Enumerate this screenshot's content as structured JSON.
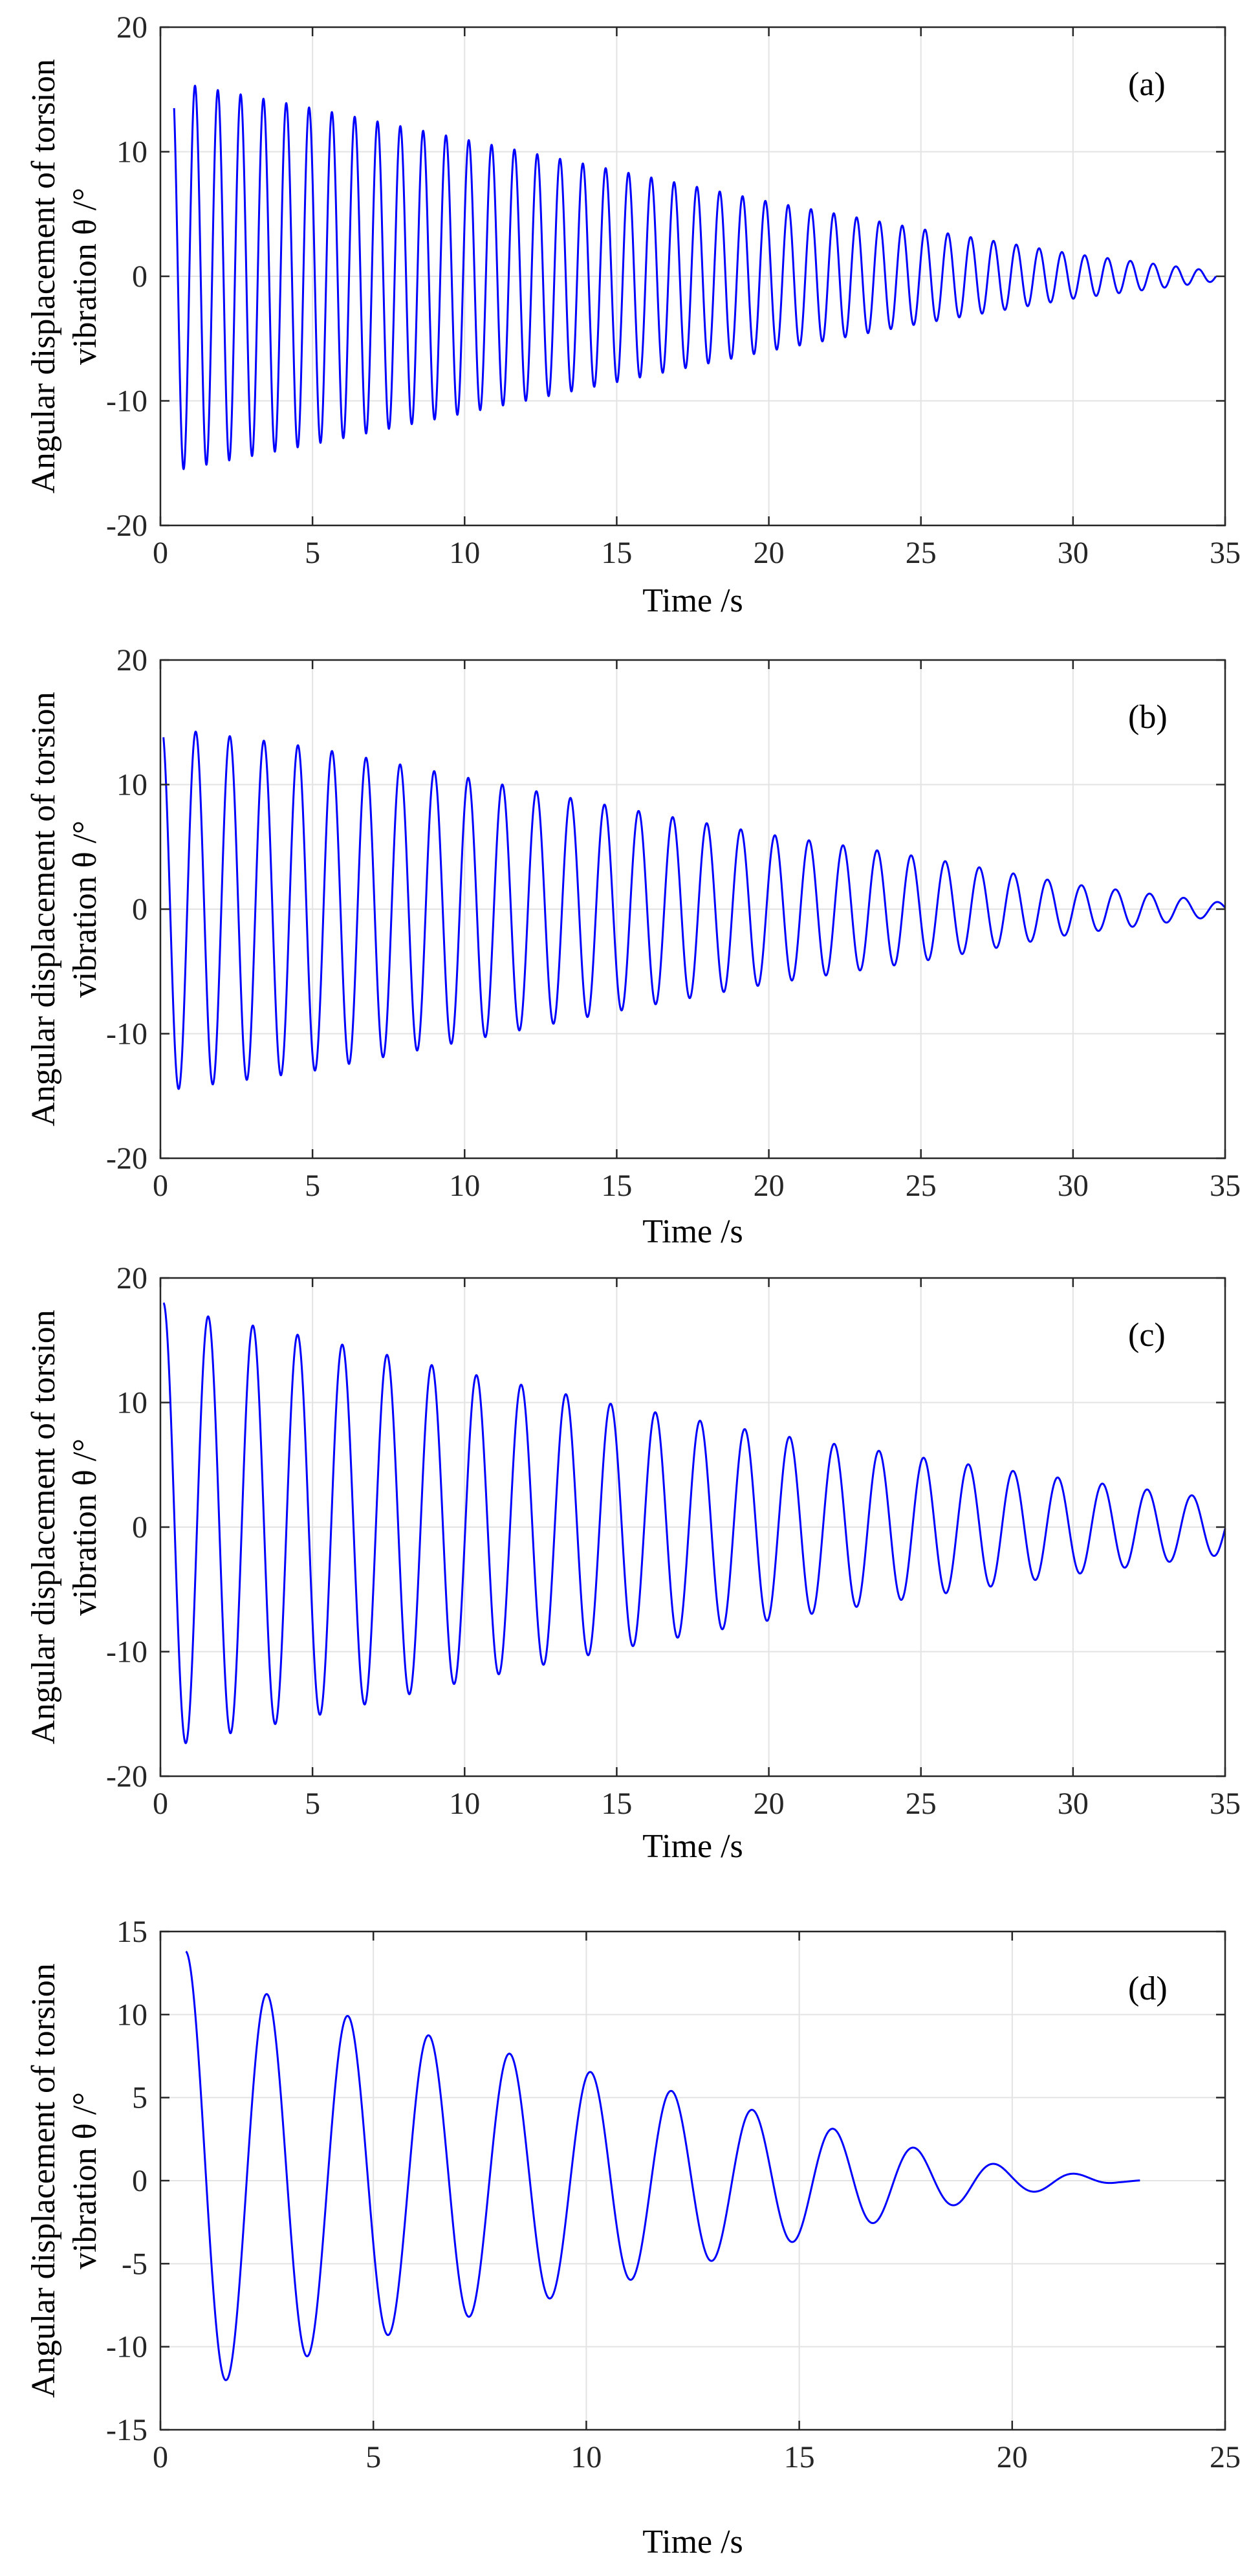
{
  "chart_data": [
    {
      "type": "line",
      "panel_label": "(a)",
      "xlabel": "Time /s",
      "ylabel_line1": "Angular displacement of torsion",
      "ylabel_line2": "vibration θ /°",
      "xlim": [
        0,
        35
      ],
      "ylim": [
        -20,
        20
      ],
      "xticks": [
        0,
        5,
        10,
        15,
        20,
        25,
        30,
        35
      ],
      "yticks": [
        -20,
        -10,
        0,
        10,
        20
      ],
      "xtick_labels": [
        "0",
        "5",
        "10",
        "15",
        "20",
        "25",
        "30",
        "35"
      ],
      "ytick_labels": [
        "-20",
        "-10",
        "0",
        "10",
        "20"
      ],
      "grid": true,
      "series": [
        {
          "name": "torsion angle",
          "color": "#0000ff",
          "start_time": 0.45,
          "end_time": 34.7,
          "period": 0.75,
          "initial_value": 13.5,
          "envelope": [
            [
              0.5,
              15.6
            ],
            [
              5,
              13.5
            ],
            [
              10,
              11.0
            ],
            [
              15,
              8.5
            ],
            [
              20,
              6.0
            ],
            [
              25,
              3.8
            ],
            [
              30,
              1.8
            ],
            [
              34.7,
              0.4
            ]
          ]
        }
      ]
    },
    {
      "type": "line",
      "panel_label": "(b)",
      "xlabel": "Time /s",
      "ylabel_line1": "Angular displacement of torsion",
      "ylabel_line2": "vibration θ /°",
      "xlim": [
        0,
        35
      ],
      "ylim": [
        -20,
        20
      ],
      "xticks": [
        0,
        5,
        10,
        15,
        20,
        25,
        30,
        35
      ],
      "yticks": [
        -20,
        -10,
        0,
        10,
        20
      ],
      "xtick_labels": [
        "0",
        "5",
        "10",
        "15",
        "20",
        "25",
        "30",
        "35"
      ],
      "ytick_labels": [
        "-20",
        "-10",
        "0",
        "10",
        "20"
      ],
      "grid": true,
      "series": [
        {
          "name": "torsion angle",
          "color": "#0000ff",
          "start_time": 0.1,
          "end_time": 35,
          "period": 1.12,
          "initial_value": 13.8,
          "envelope": [
            [
              0.1,
              14.6
            ],
            [
              5,
              13.0
            ],
            [
              10,
              10.6
            ],
            [
              15,
              8.2
            ],
            [
              20,
              6.0
            ],
            [
              25,
              4.2
            ],
            [
              30,
              2.0
            ],
            [
              35,
              0.5
            ]
          ]
        }
      ]
    },
    {
      "type": "line",
      "panel_label": "(c)",
      "xlabel": "Time /s",
      "ylabel_line1": "Angular displacement of torsion",
      "ylabel_line2": "vibration θ /°",
      "xlim": [
        0,
        35
      ],
      "ylim": [
        -20,
        20
      ],
      "xticks": [
        0,
        5,
        10,
        15,
        20,
        25,
        30,
        35
      ],
      "yticks": [
        -20,
        -10,
        0,
        10,
        20
      ],
      "xtick_labels": [
        "0",
        "5",
        "10",
        "15",
        "20",
        "25",
        "30",
        "35"
      ],
      "ytick_labels": [
        "-20",
        "-10",
        "0",
        "10",
        "20"
      ],
      "grid": true,
      "series": [
        {
          "name": "torsion angle",
          "color": "#0000ff",
          "start_time": 0.1,
          "end_time": 35,
          "period": 1.47,
          "initial_value": 18.0,
          "envelope": [
            [
              0.1,
              18.0
            ],
            [
              1,
              17.2
            ],
            [
              5,
              15.2
            ],
            [
              10,
              12.4
            ],
            [
              15,
              9.8
            ],
            [
              20,
              7.5
            ],
            [
              25,
              5.6
            ],
            [
              30,
              3.8
            ],
            [
              35,
              2.2
            ]
          ]
        }
      ]
    },
    {
      "type": "line",
      "panel_label": "(d)",
      "xlabel": "Time /s",
      "ylabel_line1": "Angular displacement of torsion",
      "ylabel_line2": "vibration θ /°",
      "xlim": [
        0,
        25
      ],
      "ylim": [
        -15,
        15
      ],
      "xticks": [
        0,
        5,
        10,
        15,
        20,
        25
      ],
      "yticks": [
        -15,
        -10,
        -5,
        0,
        5,
        10,
        15
      ],
      "xtick_labels": [
        "0",
        "5",
        "10",
        "15",
        "20",
        "25"
      ],
      "ytick_labels": [
        "-15",
        "-10",
        "-5",
        "0",
        "5",
        "10",
        "15"
      ],
      "grid": true,
      "series": [
        {
          "name": "torsion angle",
          "color": "#0000ff",
          "start_time": 0.6,
          "end_time": 23,
          "period": 1.9,
          "initial_value": 13.8,
          "envelope": [
            [
              0.6,
              13.8
            ],
            [
              1.55,
              12.0
            ],
            [
              2.4,
              11.3
            ],
            [
              5,
              9.5
            ],
            [
              10,
              6.6
            ],
            [
              15,
              3.6
            ],
            [
              18,
              1.8
            ],
            [
              20,
              0.8
            ],
            [
              21.2,
              0.5
            ],
            [
              22.5,
              0.1
            ],
            [
              23,
              0.05
            ]
          ]
        }
      ]
    }
  ]
}
